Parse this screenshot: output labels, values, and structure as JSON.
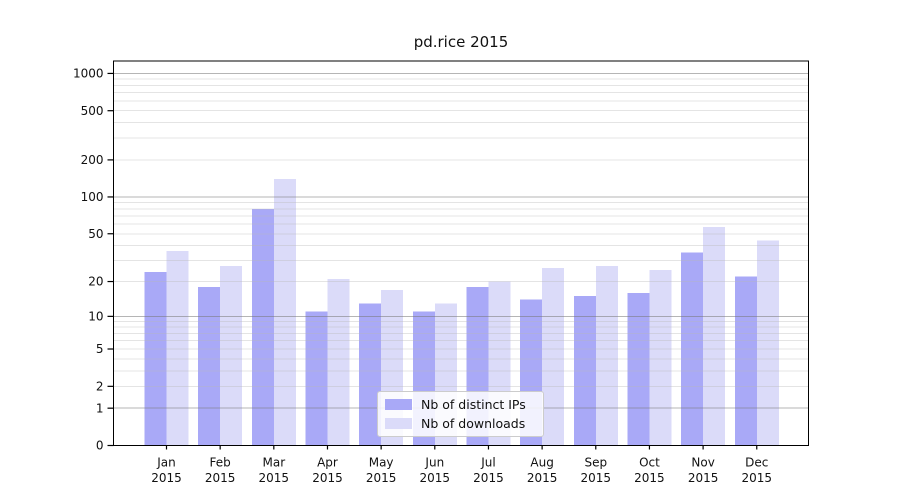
{
  "chart_data": {
    "type": "bar",
    "title": "pd.rice 2015",
    "categories": [
      "Jan",
      "Feb",
      "Mar",
      "Apr",
      "May",
      "Jun",
      "Jul",
      "Aug",
      "Sep",
      "Oct",
      "Nov",
      "Dec"
    ],
    "x_year_label": "2015",
    "series": [
      {
        "name": "Nb of distinct IPs",
        "color": "#a9a9f7",
        "values": [
          24,
          18,
          80,
          11,
          13,
          11,
          18,
          14,
          15,
          16,
          35,
          22
        ]
      },
      {
        "name": "Nb of downloads",
        "color": "#dbdbf9",
        "values": [
          36,
          27,
          140,
          21,
          17,
          13,
          20,
          26,
          27,
          25,
          57,
          44
        ]
      }
    ],
    "y_scale": "log10(1+value)",
    "y_ticks": [
      0,
      1,
      2,
      5,
      10,
      20,
      50,
      100,
      200,
      500,
      1000
    ],
    "y_major_gridlines": [
      1,
      10,
      100,
      1000
    ],
    "minor_grid_decades": [
      1,
      10,
      100
    ],
    "ylim": [
      0,
      1260
    ],
    "grid": true,
    "legend_position": "lower center inside plot",
    "colors": {
      "axis": "#000000",
      "major_grid": "#787878",
      "minor_grid": "#b9b9b9",
      "text": "#111111",
      "legend_border": "#cccccc"
    }
  }
}
